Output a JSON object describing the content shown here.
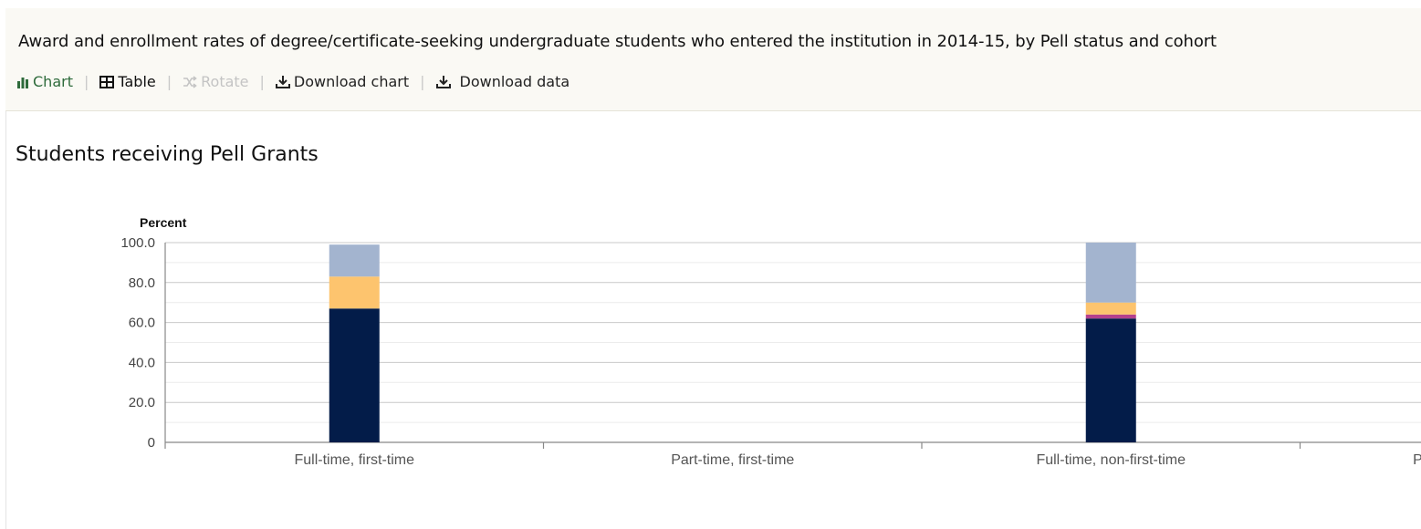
{
  "header": {
    "title": "Award and enrollment rates of degree/certificate-seeking undergraduate students who entered the institution in 2014-15, by Pell status and cohort"
  },
  "toolbar": {
    "chart_label": "Chart",
    "table_label": "Table",
    "rotate_label": "Rotate",
    "download_chart_label": "Download chart",
    "download_data_label": "Download data",
    "separator": "|"
  },
  "section": {
    "title": "Students receiving Pell Grants"
  },
  "colors": {
    "accent": "#2e6b3b",
    "series": [
      "#031c49",
      "#b5408d",
      "#fdc46e",
      "#a3b4cf"
    ]
  },
  "chart_data": {
    "type": "bar",
    "stacked": true,
    "ylabel": "Percent",
    "ylim": [
      0,
      100
    ],
    "yticks": [
      "0",
      "20.0",
      "40.0",
      "60.0",
      "80.0",
      "100.0"
    ],
    "ytick_values": [
      0,
      20,
      40,
      60,
      80,
      100
    ],
    "grid": true,
    "categories": [
      "Full-time, first-time",
      "Part-time, first-time",
      "Full-time, non-first-time",
      "Part-time, non-first-time"
    ],
    "series": [
      {
        "values": [
          67,
          0,
          62,
          0
        ]
      },
      {
        "values": [
          0,
          0,
          2,
          0
        ]
      },
      {
        "values": [
          16,
          0,
          6,
          0
        ]
      },
      {
        "values": [
          16,
          0,
          30,
          0
        ]
      }
    ]
  }
}
